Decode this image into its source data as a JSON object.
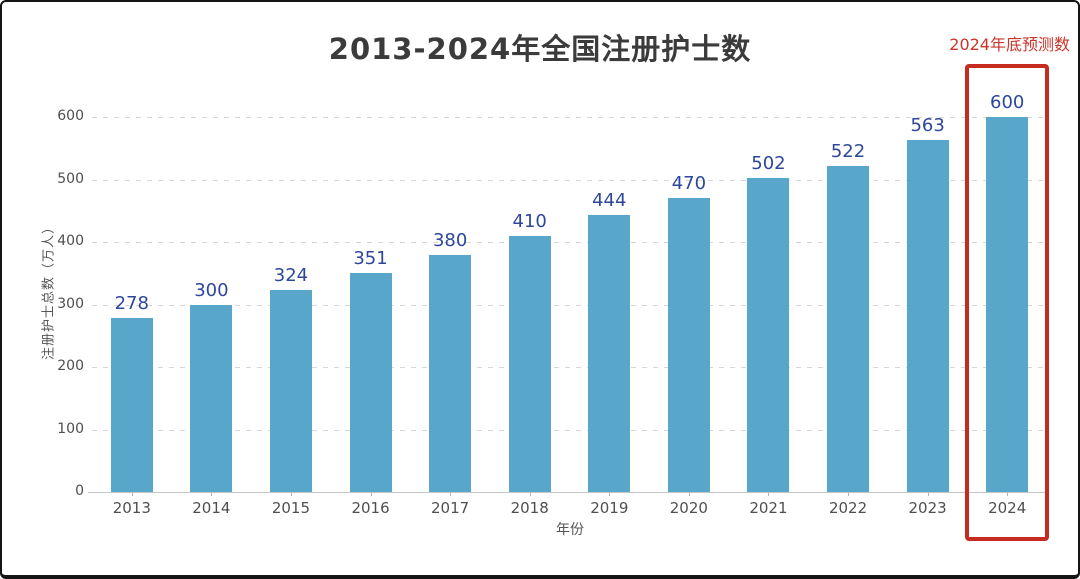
{
  "chart_data": {
    "type": "bar",
    "title": "2013-2024年全国注册护士数",
    "xlabel": "年份",
    "ylabel": "注册护士总数（万人）",
    "categories": [
      "2013",
      "2014",
      "2015",
      "2016",
      "2017",
      "2018",
      "2019",
      "2020",
      "2021",
      "2022",
      "2023",
      "2024"
    ],
    "values": [
      278,
      300,
      324,
      351,
      380,
      410,
      444,
      470,
      502,
      522,
      563,
      600
    ],
    "ylim": [
      0,
      600
    ],
    "yticks": [
      0,
      100,
      200,
      300,
      400,
      500,
      600
    ],
    "grid": "horizontal-dashed",
    "legend": "none",
    "annotation": "2024年底预测数",
    "highlight_category": "2024",
    "colors": {
      "bar": "#58a6ca",
      "value_label": "#2e479b",
      "title": "#3b3b3b",
      "annotation_text": "#cb362c",
      "highlight_box": "#c62b1f",
      "gridline": "#d7d7d7",
      "axis_text": "#4f4f4f"
    }
  }
}
